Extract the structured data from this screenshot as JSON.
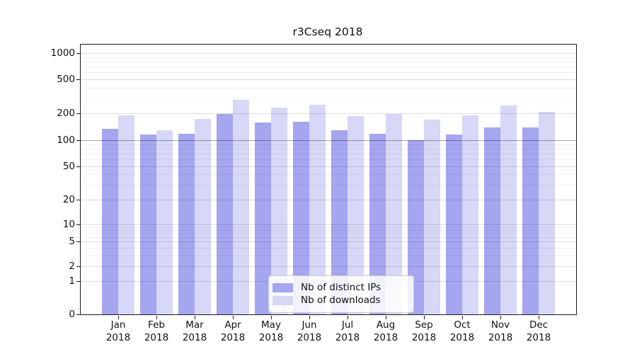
{
  "chart_data": {
    "type": "bar",
    "title": "r3Cseq 2018",
    "x": {
      "months": [
        "Jan",
        "Feb",
        "Mar",
        "Apr",
        "May",
        "Jun",
        "Jul",
        "Aug",
        "Sep",
        "Oct",
        "Nov",
        "Dec"
      ],
      "year": "2018"
    },
    "y_axis": {
      "ticks": [
        0,
        1,
        2,
        5,
        10,
        20,
        50,
        100,
        200,
        500,
        1000
      ],
      "scale": "log",
      "highlight_gridline_at": 100,
      "minor_grid": true
    },
    "series": [
      {
        "name": "Nb of distinct IPs",
        "color": "#a5a5f0",
        "values": [
          134,
          115,
          117,
          196,
          158,
          160,
          129,
          118,
          100,
          116,
          140,
          140
        ]
      },
      {
        "name": "Nb of downloads",
        "color": "#d7d7f7",
        "values": [
          190,
          130,
          174,
          290,
          233,
          250,
          186,
          196,
          169,
          191,
          245,
          208
        ]
      }
    ],
    "legend": {
      "position": "lower center",
      "entries": [
        "Nb of distinct IPs",
        "Nb of downloads"
      ]
    }
  }
}
